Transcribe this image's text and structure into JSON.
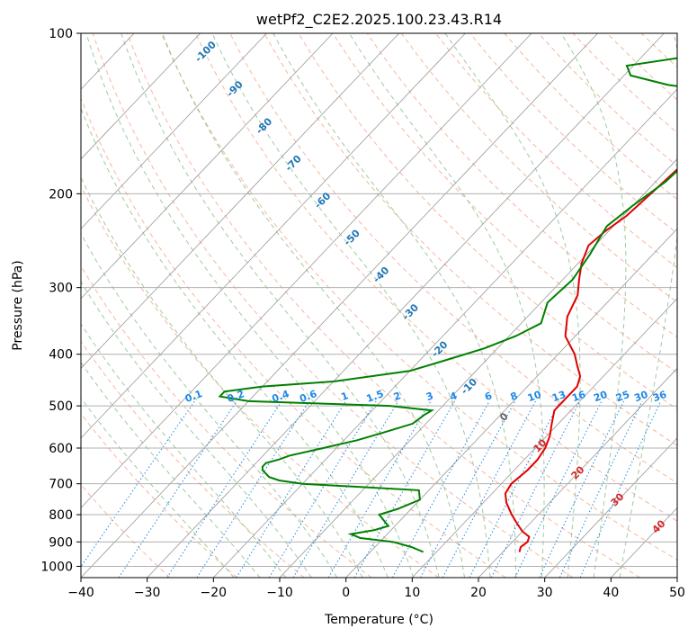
{
  "chart_data": {
    "type": "line",
    "title": "wetPf2_C2E2.2025.100.23.43.R14",
    "xlabel": "Temperature (°C)",
    "ylabel": "Pressure (hPa)",
    "xlim": [
      -40,
      50
    ],
    "ylim": [
      1050,
      100
    ],
    "y_scale": "log",
    "grid": true,
    "x_ticks": [
      "−40",
      "−30",
      "−20",
      "−10",
      "0",
      "10",
      "20",
      "30",
      "40",
      "50"
    ],
    "y_ticks": [
      "1000",
      "900",
      "800",
      "700",
      "600",
      "500",
      "400",
      "300",
      "200",
      "100"
    ],
    "colors": {
      "temperature": "#e00000",
      "dewpoint": "#008000",
      "isotherm": "#999999",
      "dry_adiabat": "#f4a582",
      "moist_adiabat": "#8fbf8f",
      "mixing_ratio": "#1e88e5",
      "hgz_label": "#1f77b4"
    },
    "series": [
      {
        "key": "temperature",
        "pressure": [
          940,
          920,
          900,
          880,
          860,
          830,
          800,
          760,
          730,
          700,
          660,
          630,
          600,
          570,
          540,
          510,
          490,
          460,
          440,
          420,
          400,
          370,
          340,
          310,
          290,
          270,
          250,
          235,
          220,
          200,
          180,
          160,
          145,
          130,
          120,
          110,
          100
        ],
        "values": [
          22.5,
          22.0,
          22.3,
          21.8,
          20.0,
          18.0,
          16.0,
          13.5,
          12.0,
          11.5,
          12.0,
          12.0,
          11.5,
          10.5,
          9.0,
          7.5,
          7.5,
          7.5,
          6.5,
          4.5,
          2.5,
          -1.5,
          -4.0,
          -5.5,
          -7.5,
          -9.5,
          -11.0,
          -10.5,
          -9.5,
          -9.0,
          -8.5,
          -7.0,
          -3.5,
          0.5,
          4.0,
          5.5,
          6.5
        ]
      },
      {
        "key": "dewpoint",
        "pressure": [
          940,
          920,
          900,
          885,
          870,
          855,
          840,
          820,
          800,
          780,
          750,
          720,
          700,
          690,
          680,
          670,
          660,
          650,
          640,
          630,
          620,
          600,
          580,
          560,
          540,
          520,
          510,
          500,
          490,
          480,
          470,
          460,
          450,
          430,
          410,
          390,
          370,
          350,
          320,
          290,
          260,
          230,
          210,
          190,
          170,
          155,
          145,
          138,
          130,
          125,
          120,
          115,
          110,
          105,
          100
        ],
        "values": [
          8.0,
          5.5,
          2.0,
          -3.5,
          -5.5,
          -2.5,
          -1.0,
          -2.5,
          -4.0,
          -2.0,
          0.0,
          -1.5,
          -20.0,
          -24.0,
          -26.0,
          -27.0,
          -28.0,
          -28.5,
          -28.5,
          -27.0,
          -26.0,
          -22.0,
          -18.0,
          -15.0,
          -12.0,
          -11.5,
          -11.0,
          -18.0,
          -40.0,
          -45.0,
          -45.0,
          -40.0,
          -30.0,
          -20.0,
          -16.0,
          -12.0,
          -9.0,
          -7.0,
          -9.0,
          -8.5,
          -9.5,
          -11.0,
          -10.0,
          -8.5,
          -8.0,
          -9.0,
          -8.5,
          -6.5,
          -10.0,
          -22.0,
          -29.0,
          -31.0,
          -22.0,
          -11.0,
          -9.0
        ]
      }
    ],
    "hgz_labels": [
      {
        "text": "-100",
        "t": -40,
        "p": 105
      },
      {
        "text": "-90",
        "t": -40,
        "p": 125
      },
      {
        "text": "-80",
        "t": -40,
        "p": 150
      },
      {
        "text": "-70",
        "t": -40,
        "p": 185
      },
      {
        "text": "-60",
        "t": -40,
        "p": 225
      },
      {
        "text": "-50",
        "t": -40,
        "p": 270
      },
      {
        "text": "-40",
        "t": -40,
        "p": 320
      },
      {
        "text": "-30",
        "t": -40,
        "p": 375
      },
      {
        "text": "-20",
        "t": -40,
        "p": 430
      },
      {
        "text": "-10",
        "t": -40,
        "p": 480
      }
    ],
    "mixing_ratio_labels": [
      "0.1",
      "0.2",
      "0.4",
      "0.6",
      "1",
      "1.5",
      "2",
      "3",
      "4",
      "6",
      "8",
      "10",
      "13",
      "16",
      "20",
      "25",
      "30",
      "36"
    ],
    "moist_adiabat_labels": [
      "0",
      "10",
      "20",
      "30",
      "40"
    ]
  }
}
